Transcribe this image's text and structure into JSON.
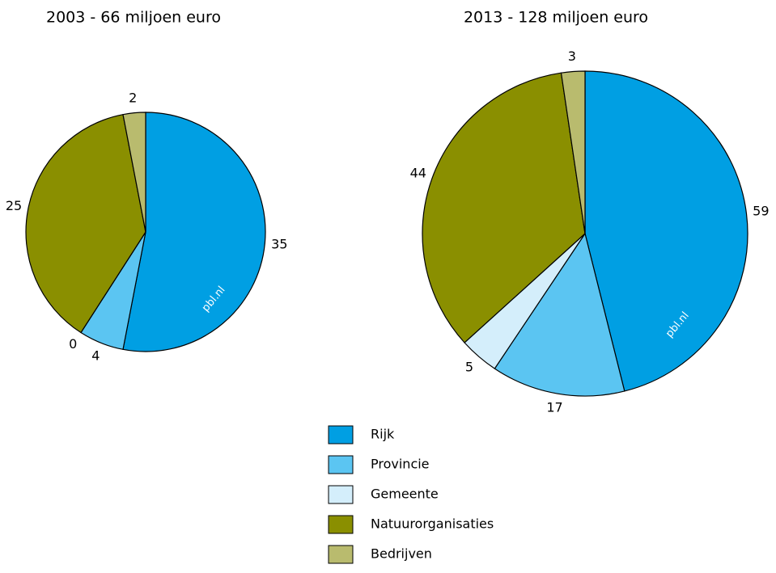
{
  "chart_data": [
    {
      "type": "pie",
      "title": "2003 - 66 miljoen euro",
      "watermark": "pbl.nl",
      "categories": [
        "Rijk",
        "Provincie",
        "Gemeente",
        "Natuurorganisaties",
        "Bedrijven"
      ],
      "values": [
        35,
        4,
        0,
        25,
        2
      ],
      "colors": [
        "#009fe3",
        "#5bc5f2",
        "#d4eefb",
        "#8a8f00",
        "#b9bb6e"
      ]
    },
    {
      "type": "pie",
      "title": "2013 - 128 miljoen euro",
      "watermark": "pbl.nl",
      "categories": [
        "Rijk",
        "Provincie",
        "Gemeente",
        "Natuurorganisaties",
        "Bedrijven"
      ],
      "values": [
        59,
        17,
        5,
        44,
        3
      ],
      "colors": [
        "#009fe3",
        "#5bc5f2",
        "#d4eefb",
        "#8a8f00",
        "#b9bb6e"
      ]
    }
  ]
}
